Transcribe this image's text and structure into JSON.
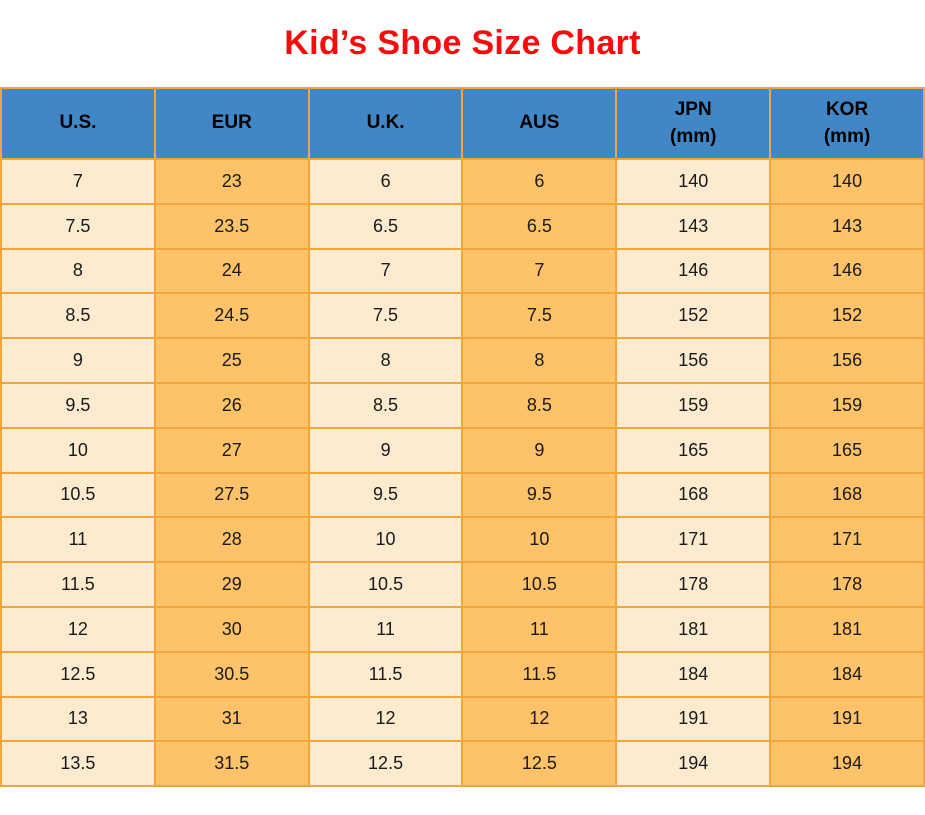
{
  "title": "Kid’s Shoe Size Chart",
  "colors": {
    "background": "#ffffff",
    "title": "#f80b0b",
    "header_bg": "#4187c6",
    "header_text": "#000000",
    "cell_light": "#fdebd0",
    "cell_orange": "#fec268",
    "border": "#f2a53c",
    "cell_text": "#1a1a1a"
  },
  "table": {
    "header_labels": [
      "U.S.",
      "EUR",
      "U.K.",
      "AUS",
      "JPN\n(mm)",
      "KOR\n(mm)"
    ]
  },
  "chart_data": {
    "type": "table",
    "title": "Kid’s Shoe Size Chart",
    "columns": [
      "U.S.",
      "EUR",
      "U.K.",
      "AUS",
      "JPN (mm)",
      "KOR (mm)"
    ],
    "rows": [
      [
        "7",
        "23",
        "6",
        "6",
        "140",
        "140"
      ],
      [
        "7.5",
        "23.5",
        "6.5",
        "6.5",
        "143",
        "143"
      ],
      [
        "8",
        "24",
        "7",
        "7",
        "146",
        "146"
      ],
      [
        "8.5",
        "24.5",
        "7.5",
        "7.5",
        "152",
        "152"
      ],
      [
        "9",
        "25",
        "8",
        "8",
        "156",
        "156"
      ],
      [
        "9.5",
        "26",
        "8.5",
        "8.5",
        "159",
        "159"
      ],
      [
        "10",
        "27",
        "9",
        "9",
        "165",
        "165"
      ],
      [
        "10.5",
        "27.5",
        "9.5",
        "9.5",
        "168",
        "168"
      ],
      [
        "11",
        "28",
        "10",
        "10",
        "171",
        "171"
      ],
      [
        "11.5",
        "29",
        "10.5",
        "10.5",
        "178",
        "178"
      ],
      [
        "12",
        "30",
        "11",
        "11",
        "181",
        "181"
      ],
      [
        "12.5",
        "30.5",
        "11.5",
        "11.5",
        "184",
        "184"
      ],
      [
        "13",
        "31",
        "12",
        "12",
        "191",
        "191"
      ],
      [
        "13.5",
        "31.5",
        "12.5",
        "12.5",
        "194",
        "194"
      ]
    ],
    "layout": {
      "column_fill_alternation": [
        "cell_light",
        "cell_orange"
      ],
      "header_row": true,
      "grid": true
    }
  }
}
